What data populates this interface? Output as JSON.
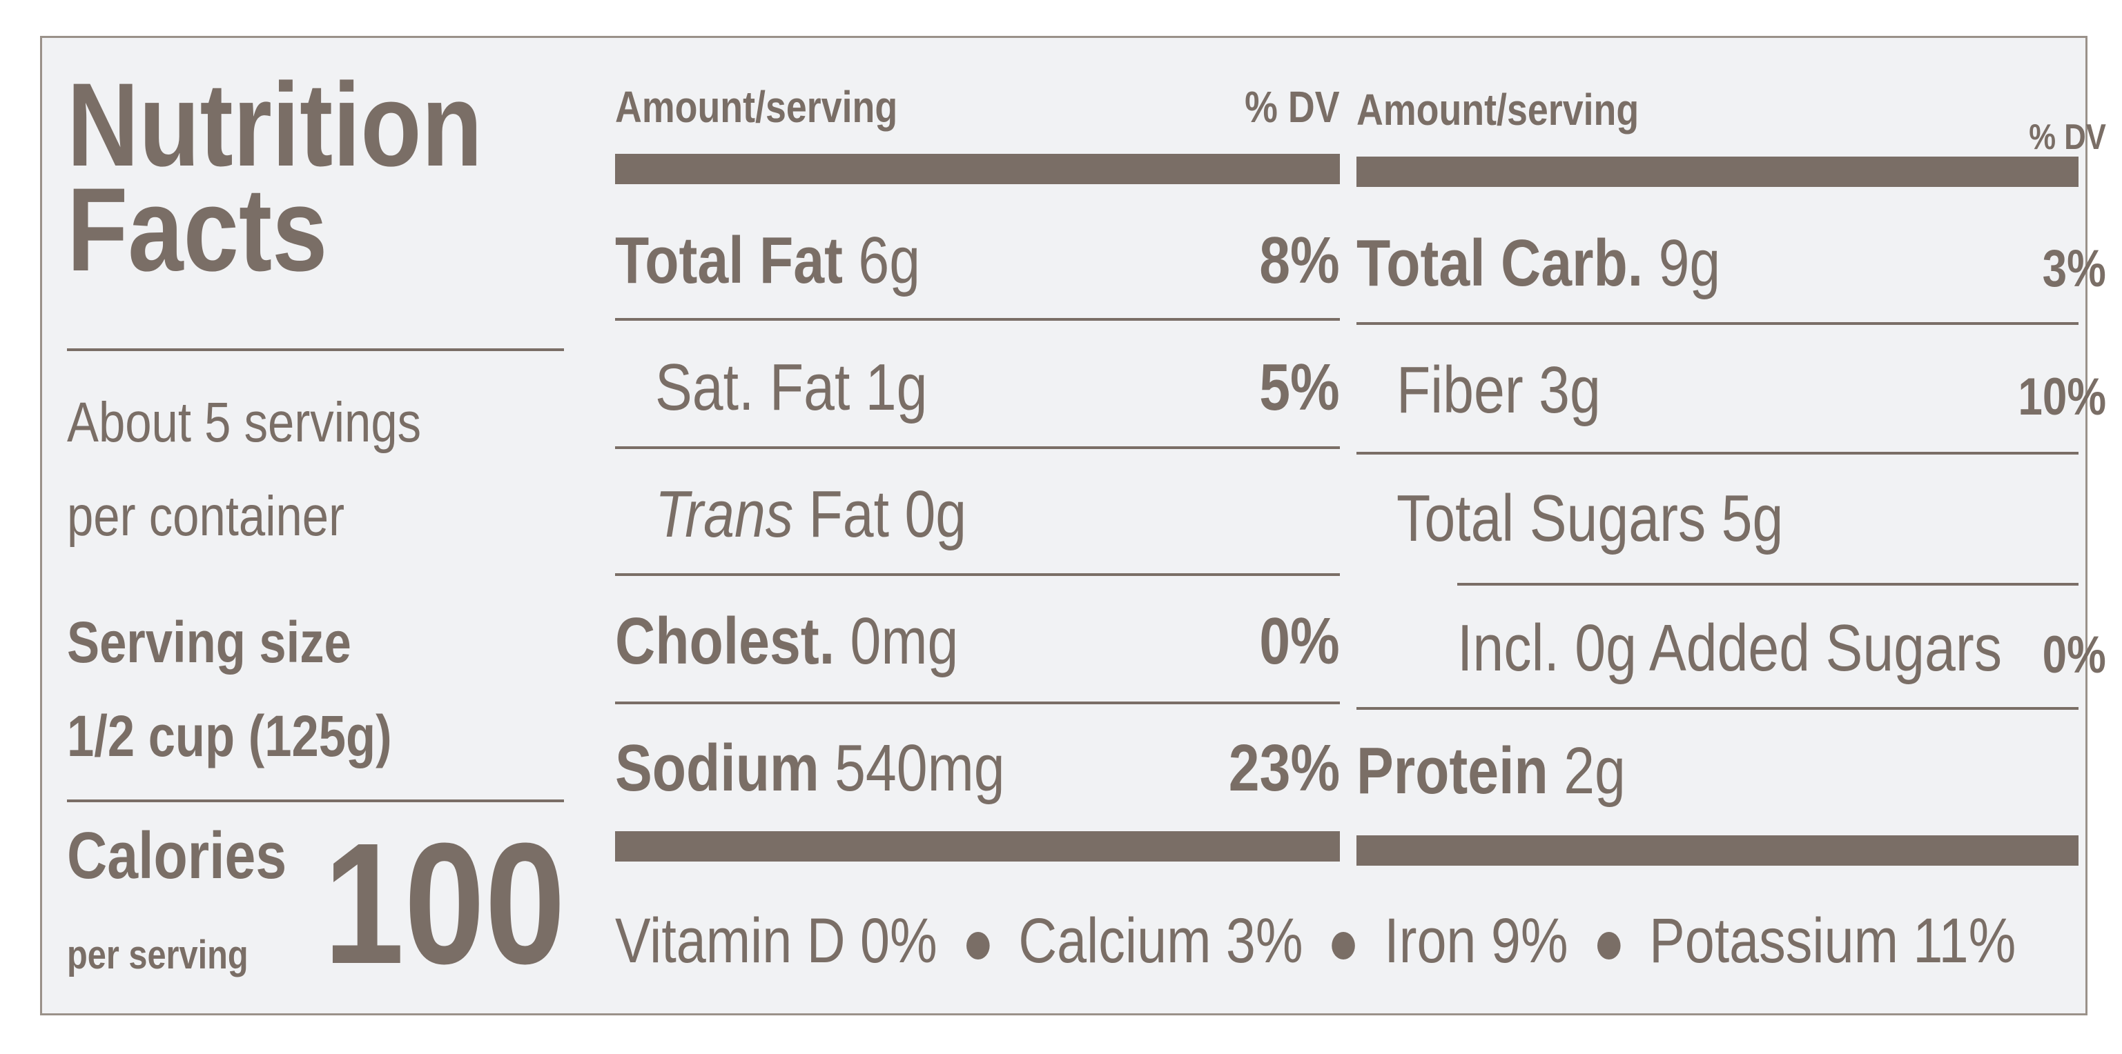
{
  "title_line1": "Nutrition",
  "title_line2": "Facts",
  "servings_line1": "About 5 servings",
  "servings_line2": "per container",
  "serving_size_label": "Serving size",
  "serving_size_value": "1/2 cup (125g)",
  "calories_label": "Calories",
  "calories_sublabel": "per serving",
  "calories_value": "100",
  "left_table": {
    "header_amount": "Amount/serving",
    "header_dv": "% DV",
    "rows": [
      {
        "name": "Total Fat",
        "amount": "6g",
        "dv": "8%"
      },
      {
        "name": "Sat. Fat",
        "amount": "1g",
        "dv": "5%"
      },
      {
        "name": "Trans",
        "amount": "Fat 0g",
        "dv": ""
      },
      {
        "name": "Cholest.",
        "amount": "0mg",
        "dv": "0%"
      },
      {
        "name": "Sodium",
        "amount": "540mg",
        "dv": "23%"
      }
    ]
  },
  "right_table": {
    "header_amount": "Amount/serving",
    "header_dv": "% DV",
    "rows": [
      {
        "name": "Total Carb.",
        "amount": "9g",
        "dv": "3%"
      },
      {
        "name": "Fiber",
        "amount": "3g",
        "dv": "10%"
      },
      {
        "name": "Total Sugars",
        "amount": "5g",
        "dv": ""
      },
      {
        "name": "Incl. 0g Added Sugars",
        "amount": "",
        "dv": "0%"
      },
      {
        "name": "Protein",
        "amount": "2g",
        "dv": ""
      }
    ]
  },
  "vitamins": [
    "Vitamin D 0%",
    "Calcium 3%",
    "Iron 9%",
    "Potassium 11%"
  ]
}
